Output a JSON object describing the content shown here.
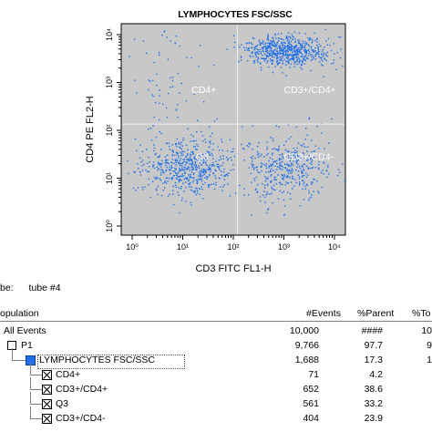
{
  "plot": {
    "title": "LYMPHOCYTES FSC/SSC",
    "x_axis_label": "CD3 FITC FL1-H",
    "y_axis_label": "CD4 PE FL2-H"
  },
  "chart_data": {
    "type": "scatter",
    "title": "LYMPHOCYTES FSC/SSC",
    "xlabel": "CD3 FITC FL1-H",
    "ylabel": "CD4 PE FL2-H",
    "x_scale": "log",
    "y_scale": "log",
    "xlim": [
      1,
      10000
    ],
    "ylim": [
      1,
      10000
    ],
    "x_ticks": [
      {
        "value": 1,
        "label": "10⁰"
      },
      {
        "value": 10,
        "label": "10¹"
      },
      {
        "value": 100,
        "label": "10²"
      },
      {
        "value": 1000,
        "label": "10³"
      },
      {
        "value": 10000,
        "label": "10⁴"
      }
    ],
    "y_ticks": [
      {
        "value": 1,
        "label": "10⁰"
      },
      {
        "value": 10,
        "label": "10¹"
      },
      {
        "value": 100,
        "label": "10²"
      },
      {
        "value": 1000,
        "label": "10³"
      },
      {
        "value": 10000,
        "label": "10⁴"
      }
    ],
    "grid": false,
    "background": "#c8c8c8",
    "point_color": "#1e6fe8",
    "quadrant_line_color": "#f0f0f0",
    "quadrant_x": 120,
    "quadrant_y": 135,
    "quadrants": [
      {
        "label": "CD4+",
        "x": 15,
        "y": 600
      },
      {
        "label": "CD3+/CD4+",
        "x": 1000,
        "y": 600
      },
      {
        "label": "Q3",
        "x": 18,
        "y": 24
      },
      {
        "label": "CD3+/CD4-",
        "x": 1000,
        "y": 24
      }
    ],
    "clusters": [
      {
        "region": "CD3+/CD4+",
        "center": [
          1050,
          4600
        ],
        "spread": [
          0.22,
          0.08
        ]
      },
      {
        "region": "Q3",
        "center": [
          12,
          17
        ],
        "spread": [
          0.22,
          0.15
        ]
      },
      {
        "region": "CD3+/CD4-",
        "center": [
          1100,
          16
        ],
        "spread": [
          0.22,
          0.18
        ]
      },
      {
        "region": "CD4+",
        "center": [
          5,
          1200
        ],
        "spread": [
          0.18,
          0.35
        ]
      }
    ]
  },
  "analysis": {
    "tube_label": "be:",
    "tube_value": "tube #4",
    "columns": [
      "opulation",
      "#Events",
      "%Parent",
      "%To"
    ],
    "rows": [
      {
        "name": "All Events",
        "events": "10,000",
        "parent": "####",
        "total": "10",
        "marker": "none",
        "level": 0
      },
      {
        "name": "P1",
        "events": "9,766",
        "parent": "97.7",
        "total": "9",
        "marker": "box",
        "level": 1
      },
      {
        "name": "LYMPHOCYTES FSC/SSC",
        "events": "1,688",
        "parent": "17.3",
        "total": "1",
        "marker": "swatch",
        "level": 2
      },
      {
        "name": "CD4+",
        "events": "71",
        "parent": "4.2",
        "total": "",
        "marker": "xbox",
        "level": 3
      },
      {
        "name": "CD3+/CD4+",
        "events": "652",
        "parent": "38.6",
        "total": "",
        "marker": "xbox",
        "level": 3
      },
      {
        "name": "Q3",
        "events": "561",
        "parent": "33.2",
        "total": "",
        "marker": "xbox",
        "level": 3
      },
      {
        "name": "CD3+/CD4-",
        "events": "404",
        "parent": "23.9",
        "total": "",
        "marker": "xbox",
        "level": 3
      }
    ]
  }
}
